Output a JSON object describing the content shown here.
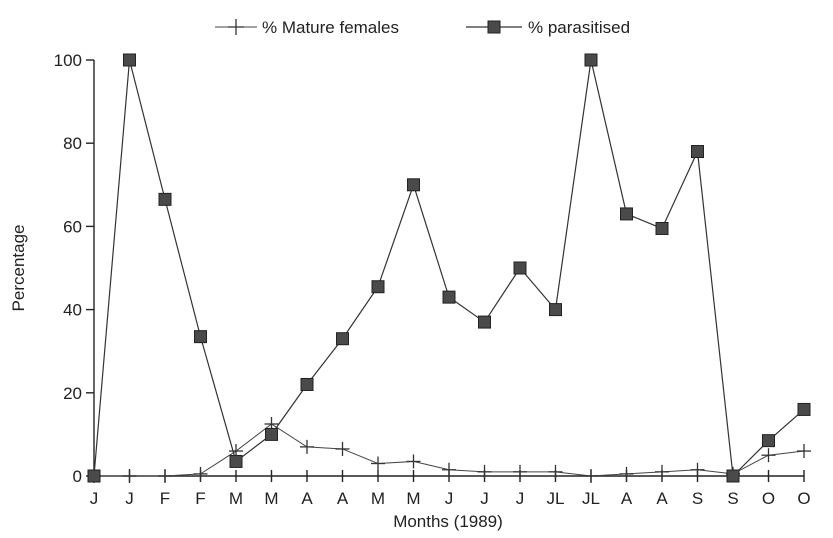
{
  "chart_data": {
    "type": "line",
    "xlabel": "Months (1989)",
    "ylabel": "Percentage",
    "ylim": [
      0,
      100
    ],
    "yticks": [
      0,
      20,
      40,
      60,
      80,
      100
    ],
    "categories": [
      "J",
      "J",
      "F",
      "F",
      "M",
      "M",
      "A",
      "A",
      "M",
      "M",
      "J",
      "J",
      "J",
      "JL",
      "JL",
      "A",
      "A",
      "S",
      "S",
      "O",
      "O"
    ],
    "legend_position": "top-center",
    "grid": false,
    "series": [
      {
        "name": "% Mature females",
        "marker": "plus",
        "values": [
          0,
          0,
          0,
          0.5,
          6,
          12.5,
          7,
          6.5,
          3,
          3.5,
          1.5,
          1,
          1,
          1,
          0,
          0.5,
          1,
          1.5,
          0.5,
          5,
          6
        ]
      },
      {
        "name": "% parasitised",
        "marker": "square",
        "values": [
          0,
          100,
          66.5,
          33.5,
          3.5,
          10,
          22,
          33,
          45.5,
          70,
          43,
          37,
          50,
          40,
          100,
          63,
          59.5,
          78,
          0,
          8.5,
          16
        ]
      }
    ]
  }
}
